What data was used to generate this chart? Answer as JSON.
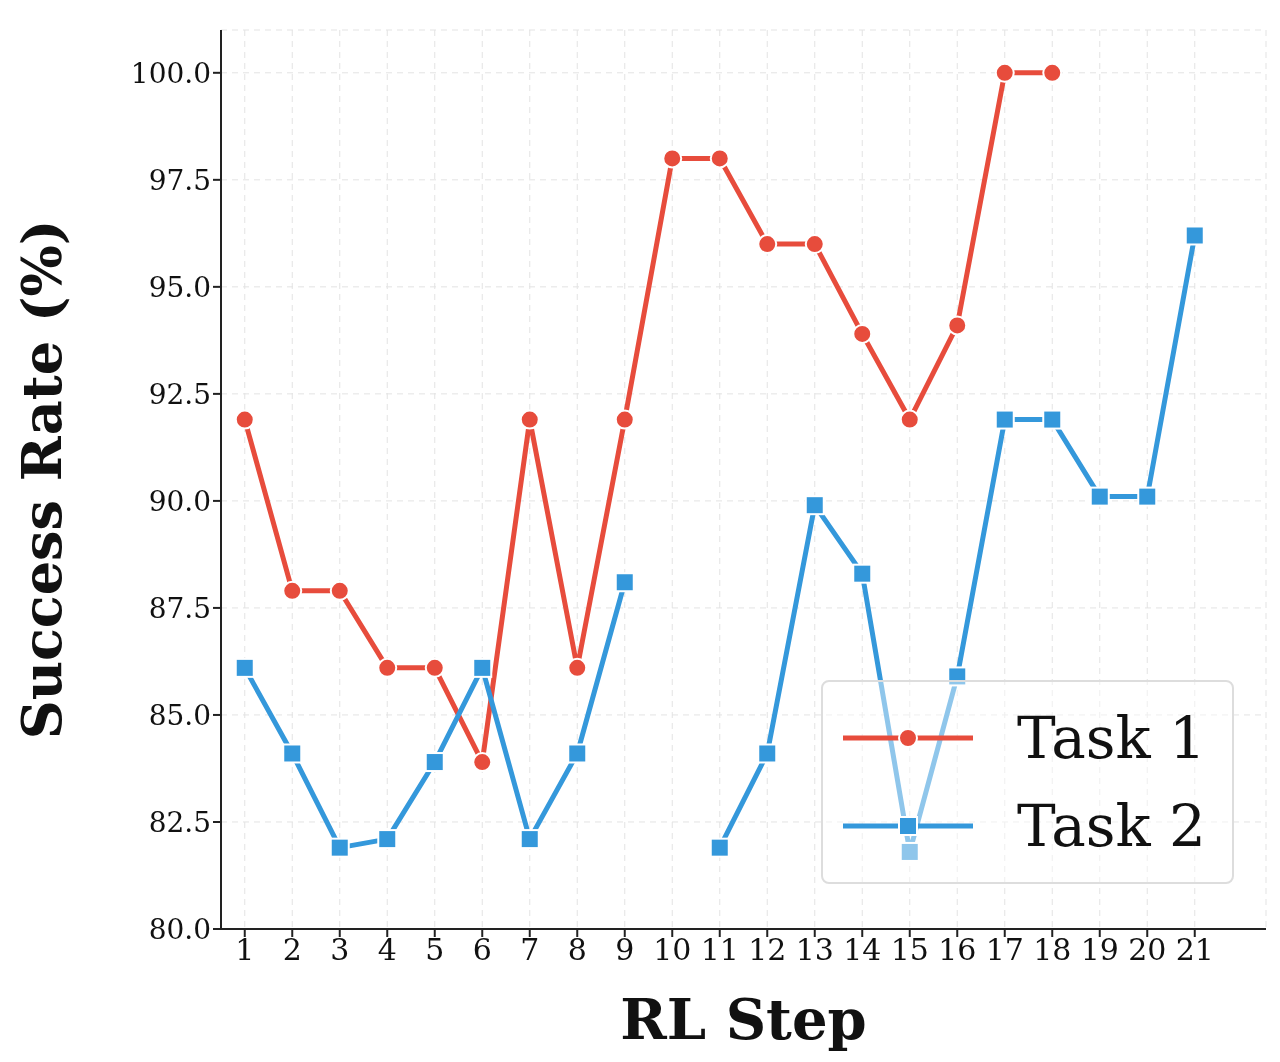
{
  "chart_data": {
    "type": "line",
    "xlabel": "RL Step",
    "ylabel": "Success Rate (%)",
    "x": [
      1,
      2,
      3,
      4,
      5,
      6,
      7,
      8,
      9,
      10,
      11,
      12,
      13,
      14,
      15,
      16,
      17,
      18,
      19,
      20,
      21
    ],
    "xlim": [
      0.5,
      22.5
    ],
    "xticks": [
      1,
      2,
      3,
      4,
      5,
      6,
      7,
      8,
      9,
      10,
      11,
      12,
      13,
      14,
      15,
      16,
      17,
      18,
      19,
      20,
      21
    ],
    "ylim": [
      80,
      101
    ],
    "yticks": [
      {
        "value": 80,
        "label": "80.0"
      },
      {
        "value": 82.5,
        "label": "82.5"
      },
      {
        "value": 85,
        "label": "85.0"
      },
      {
        "value": 87.5,
        "label": "87.5"
      },
      {
        "value": 90,
        "label": "90.0"
      },
      {
        "value": 92.5,
        "label": "92.5"
      },
      {
        "value": 95,
        "label": "95.0"
      },
      {
        "value": 97.5,
        "label": "97.5"
      },
      {
        "value": 100,
        "label": "100.0"
      }
    ],
    "grid": true,
    "legend": "bottom right",
    "line_style": "solid",
    "series": [
      {
        "name": "Task 1",
        "color": "#e74c3c",
        "marker": "circle",
        "values": [
          91.9,
          87.9,
          87.9,
          86.1,
          86.1,
          83.9,
          91.9,
          86.1,
          91.9,
          98.0,
          98.0,
          96.0,
          96.0,
          93.9,
          91.9,
          94.1,
          100,
          100,
          null,
          null,
          null
        ]
      },
      {
        "name": "Task 2",
        "color": "#3498db",
        "marker": "square",
        "values": [
          86.1,
          84.1,
          81.9,
          82.1,
          83.9,
          86.1,
          82.1,
          84.1,
          88.1,
          null,
          81.9,
          84.1,
          89.9,
          88.3,
          81.8,
          85.9,
          91.9,
          91.9,
          90.1,
          90.1,
          96.2
        ]
      }
    ]
  }
}
